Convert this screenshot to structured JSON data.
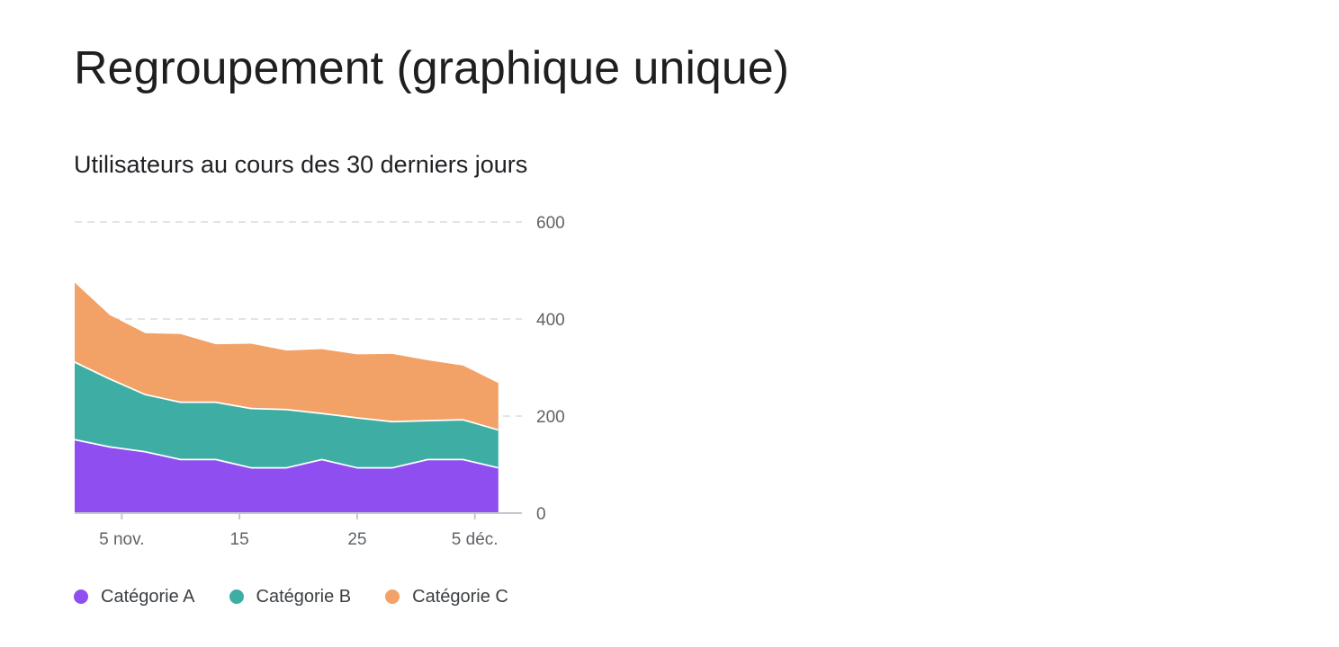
{
  "page": {
    "title": "Regroupement (graphique unique)"
  },
  "chart_data": {
    "type": "area",
    "stacked": true,
    "title": "Utilisateurs au cours des 30 derniers jours",
    "xlabel": "",
    "ylabel": "",
    "x": [
      "2023-11-01",
      "2023-11-04",
      "2023-11-07",
      "2023-11-10",
      "2023-11-13",
      "2023-11-16",
      "2023-11-19",
      "2023-11-22",
      "2023-11-25",
      "2023-11-28",
      "2023-12-01",
      "2023-12-04",
      "2023-12-07"
    ],
    "x_range": [
      "2023-11-01",
      "2023-12-09"
    ],
    "x_ticks": [
      {
        "date": "2023-11-05",
        "label": "5 nov."
      },
      {
        "date": "2023-11-15",
        "label": "15"
      },
      {
        "date": "2023-11-25",
        "label": "25"
      },
      {
        "date": "2023-12-05",
        "label": "5 déc."
      }
    ],
    "ylim": [
      0,
      600
    ],
    "y_ticks": [
      0,
      200,
      400,
      600
    ],
    "y_axis_position": "right",
    "grid": true,
    "legend_position": "bottom-left",
    "series": [
      {
        "name": "Catégorie A",
        "color": "#8f4ff0",
        "values": [
          153,
          138,
          128,
          112,
          112,
          95,
          95,
          112,
          95,
          95,
          112,
          112,
          95
        ]
      },
      {
        "name": "Catégorie B",
        "color": "#3eaea4",
        "values": [
          160,
          140,
          118,
          118,
          118,
          122,
          120,
          95,
          103,
          95,
          80,
          82,
          78
        ]
      },
      {
        "name": "Catégorie C",
        "color": "#f2a167",
        "values": [
          162,
          130,
          125,
          139,
          118,
          132,
          120,
          131,
          129,
          138,
          123,
          110,
          95
        ]
      }
    ]
  }
}
